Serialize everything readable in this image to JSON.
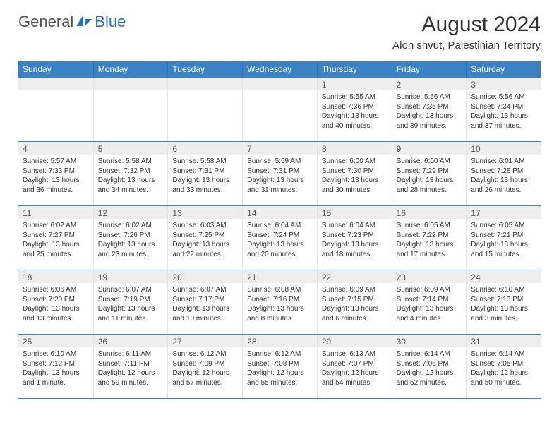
{
  "brand": {
    "part1": "General",
    "part2": "Blue"
  },
  "colors": {
    "header_bg": "#3b82c4",
    "header_border": "#2f71b8",
    "week_divider": "#3b82c4",
    "day_band": "#eeeeee",
    "cell_border": "#e5e5e5",
    "text": "#333333",
    "brand_gray": "#555555",
    "brand_blue": "#2f71b8",
    "background": "#ffffff"
  },
  "title": "August 2024",
  "location": "Alon shvut, Palestinian Territory",
  "weekdays": [
    "Sunday",
    "Monday",
    "Tuesday",
    "Wednesday",
    "Thursday",
    "Friday",
    "Saturday"
  ],
  "weeks": [
    [
      {
        "n": "",
        "lines": []
      },
      {
        "n": "",
        "lines": []
      },
      {
        "n": "",
        "lines": []
      },
      {
        "n": "",
        "lines": []
      },
      {
        "n": "1",
        "lines": [
          "Sunrise: 5:55 AM",
          "Sunset: 7:36 PM",
          "Daylight: 13 hours and 40 minutes."
        ]
      },
      {
        "n": "2",
        "lines": [
          "Sunrise: 5:56 AM",
          "Sunset: 7:35 PM",
          "Daylight: 13 hours and 39 minutes."
        ]
      },
      {
        "n": "3",
        "lines": [
          "Sunrise: 5:56 AM",
          "Sunset: 7:34 PM",
          "Daylight: 13 hours and 37 minutes."
        ]
      }
    ],
    [
      {
        "n": "4",
        "lines": [
          "Sunrise: 5:57 AM",
          "Sunset: 7:33 PM",
          "Daylight: 13 hours and 36 minutes."
        ]
      },
      {
        "n": "5",
        "lines": [
          "Sunrise: 5:58 AM",
          "Sunset: 7:32 PM",
          "Daylight: 13 hours and 34 minutes."
        ]
      },
      {
        "n": "6",
        "lines": [
          "Sunrise: 5:58 AM",
          "Sunset: 7:31 PM",
          "Daylight: 13 hours and 33 minutes."
        ]
      },
      {
        "n": "7",
        "lines": [
          "Sunrise: 5:59 AM",
          "Sunset: 7:31 PM",
          "Daylight: 13 hours and 31 minutes."
        ]
      },
      {
        "n": "8",
        "lines": [
          "Sunrise: 6:00 AM",
          "Sunset: 7:30 PM",
          "Daylight: 13 hours and 30 minutes."
        ]
      },
      {
        "n": "9",
        "lines": [
          "Sunrise: 6:00 AM",
          "Sunset: 7:29 PM",
          "Daylight: 13 hours and 28 minutes."
        ]
      },
      {
        "n": "10",
        "lines": [
          "Sunrise: 6:01 AM",
          "Sunset: 7:28 PM",
          "Daylight: 13 hours and 26 minutes."
        ]
      }
    ],
    [
      {
        "n": "11",
        "lines": [
          "Sunrise: 6:02 AM",
          "Sunset: 7:27 PM",
          "Daylight: 13 hours and 25 minutes."
        ]
      },
      {
        "n": "12",
        "lines": [
          "Sunrise: 6:02 AM",
          "Sunset: 7:26 PM",
          "Daylight: 13 hours and 23 minutes."
        ]
      },
      {
        "n": "13",
        "lines": [
          "Sunrise: 6:03 AM",
          "Sunset: 7:25 PM",
          "Daylight: 13 hours and 22 minutes."
        ]
      },
      {
        "n": "14",
        "lines": [
          "Sunrise: 6:04 AM",
          "Sunset: 7:24 PM",
          "Daylight: 13 hours and 20 minutes."
        ]
      },
      {
        "n": "15",
        "lines": [
          "Sunrise: 6:04 AM",
          "Sunset: 7:23 PM",
          "Daylight: 13 hours and 18 minutes."
        ]
      },
      {
        "n": "16",
        "lines": [
          "Sunrise: 6:05 AM",
          "Sunset: 7:22 PM",
          "Daylight: 13 hours and 17 minutes."
        ]
      },
      {
        "n": "17",
        "lines": [
          "Sunrise: 6:05 AM",
          "Sunset: 7:21 PM",
          "Daylight: 13 hours and 15 minutes."
        ]
      }
    ],
    [
      {
        "n": "18",
        "lines": [
          "Sunrise: 6:06 AM",
          "Sunset: 7:20 PM",
          "Daylight: 13 hours and 13 minutes."
        ]
      },
      {
        "n": "19",
        "lines": [
          "Sunrise: 6:07 AM",
          "Sunset: 7:19 PM",
          "Daylight: 13 hours and 11 minutes."
        ]
      },
      {
        "n": "20",
        "lines": [
          "Sunrise: 6:07 AM",
          "Sunset: 7:17 PM",
          "Daylight: 13 hours and 10 minutes."
        ]
      },
      {
        "n": "21",
        "lines": [
          "Sunrise: 6:08 AM",
          "Sunset: 7:16 PM",
          "Daylight: 13 hours and 8 minutes."
        ]
      },
      {
        "n": "22",
        "lines": [
          "Sunrise: 6:09 AM",
          "Sunset: 7:15 PM",
          "Daylight: 13 hours and 6 minutes."
        ]
      },
      {
        "n": "23",
        "lines": [
          "Sunrise: 6:09 AM",
          "Sunset: 7:14 PM",
          "Daylight: 13 hours and 4 minutes."
        ]
      },
      {
        "n": "24",
        "lines": [
          "Sunrise: 6:10 AM",
          "Sunset: 7:13 PM",
          "Daylight: 13 hours and 3 minutes."
        ]
      }
    ],
    [
      {
        "n": "25",
        "lines": [
          "Sunrise: 6:10 AM",
          "Sunset: 7:12 PM",
          "Daylight: 13 hours and 1 minute."
        ]
      },
      {
        "n": "26",
        "lines": [
          "Sunrise: 6:11 AM",
          "Sunset: 7:11 PM",
          "Daylight: 12 hours and 59 minutes."
        ]
      },
      {
        "n": "27",
        "lines": [
          "Sunrise: 6:12 AM",
          "Sunset: 7:09 PM",
          "Daylight: 12 hours and 57 minutes."
        ]
      },
      {
        "n": "28",
        "lines": [
          "Sunrise: 6:12 AM",
          "Sunset: 7:08 PM",
          "Daylight: 12 hours and 55 minutes."
        ]
      },
      {
        "n": "29",
        "lines": [
          "Sunrise: 6:13 AM",
          "Sunset: 7:07 PM",
          "Daylight: 12 hours and 54 minutes."
        ]
      },
      {
        "n": "30",
        "lines": [
          "Sunrise: 6:14 AM",
          "Sunset: 7:06 PM",
          "Daylight: 12 hours and 52 minutes."
        ]
      },
      {
        "n": "31",
        "lines": [
          "Sunrise: 6:14 AM",
          "Sunset: 7:05 PM",
          "Daylight: 12 hours and 50 minutes."
        ]
      }
    ]
  ]
}
